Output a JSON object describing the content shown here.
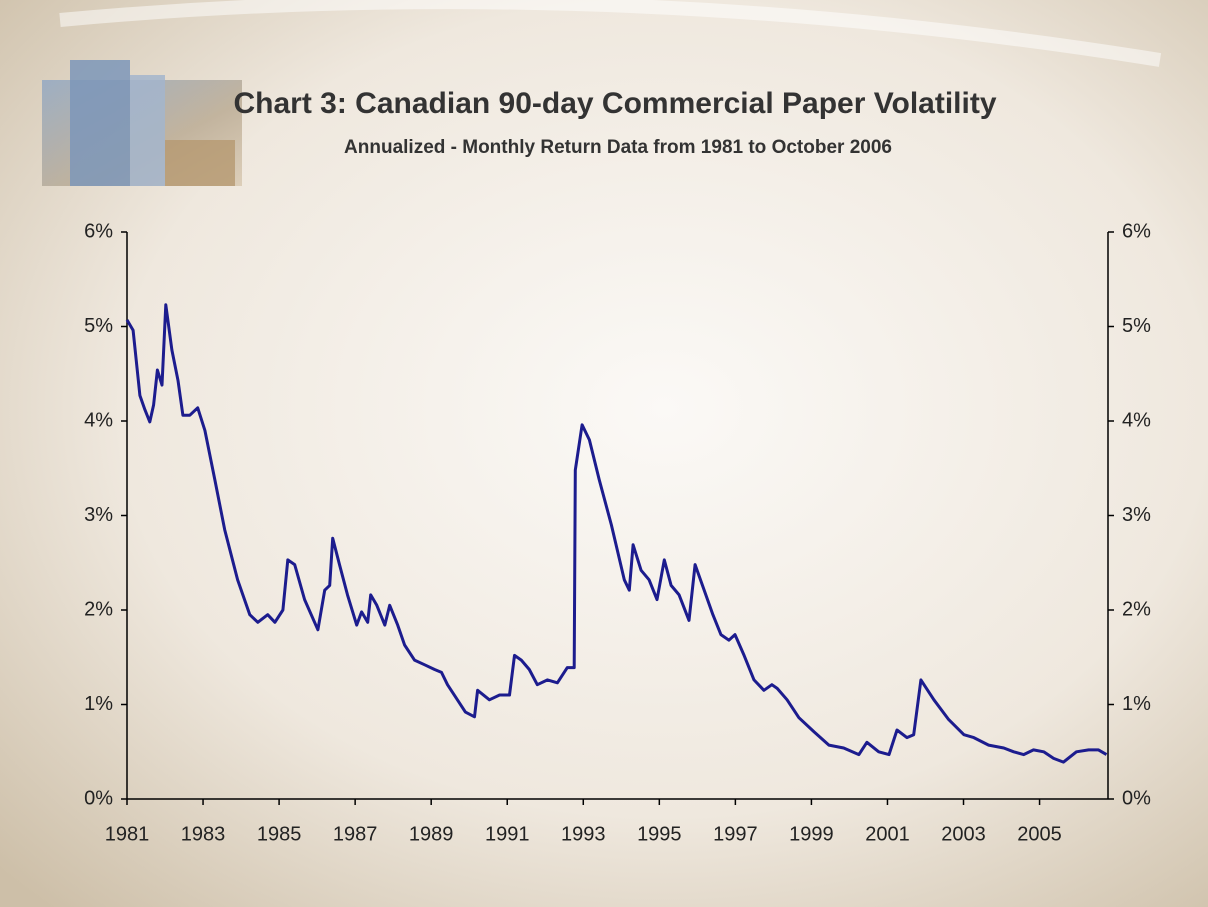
{
  "chart_data": {
    "type": "line",
    "title": "Chart 3: Canadian 90-day Commercial Paper Volatility",
    "subtitle": "Annualized - Monthly Return Data from 1981 to October 2006",
    "color": "#1c1c8e",
    "x": [
      1981.0,
      1981.16,
      1981.34,
      1981.47,
      1981.6,
      1981.7,
      1981.8,
      1981.92,
      1982.02,
      1982.18,
      1982.34,
      1982.47,
      1982.65,
      1982.86,
      1983.05,
      1983.31,
      1983.57,
      1983.91,
      1984.23,
      1984.44,
      1984.7,
      1984.89,
      1985.1,
      1985.23,
      1985.41,
      1985.67,
      1986.02,
      1986.2,
      1986.33,
      1986.41,
      1986.59,
      1986.8,
      1987.04,
      1987.17,
      1987.33,
      1987.41,
      1987.57,
      1987.78,
      1987.91,
      1988.12,
      1988.3,
      1988.56,
      1988.83,
      1989.09,
      1989.27,
      1989.43,
      1989.69,
      1989.9,
      1990.14,
      1990.22,
      1990.53,
      1990.8,
      1991.06,
      1991.19,
      1991.37,
      1991.58,
      1991.79,
      1992.06,
      1992.32,
      1992.58,
      1992.76,
      1992.79,
      1992.97,
      1993.16,
      1993.42,
      1993.74,
      1994.08,
      1994.21,
      1994.31,
      1994.52,
      1994.73,
      1994.94,
      1995.13,
      1995.31,
      1995.52,
      1995.78,
      1995.94,
      1996.18,
      1996.41,
      1996.62,
      1996.83,
      1996.99,
      1997.23,
      1997.49,
      1997.75,
      1997.96,
      1998.1,
      1998.36,
      1998.67,
      1999.07,
      1999.46,
      1999.85,
      2000.25,
      2000.46,
      2000.77,
      2001.04,
      2001.25,
      2001.51,
      2001.69,
      2001.88,
      2002.22,
      2002.61,
      2003.01,
      2003.27,
      2003.66,
      2004.06,
      2004.32,
      2004.58,
      2004.84,
      2005.11,
      2005.37,
      2005.63,
      2005.97,
      2006.29,
      2006.55,
      2006.76
    ],
    "values": [
      5.07,
      4.96,
      4.27,
      4.12,
      3.99,
      4.17,
      4.54,
      4.38,
      5.23,
      4.75,
      4.43,
      4.06,
      4.06,
      4.14,
      3.9,
      3.38,
      2.85,
      2.32,
      1.95,
      1.87,
      1.95,
      1.87,
      2.0,
      2.53,
      2.48,
      2.11,
      1.79,
      2.21,
      2.26,
      2.76,
      2.48,
      2.16,
      1.84,
      1.98,
      1.87,
      2.16,
      2.05,
      1.84,
      2.05,
      1.84,
      1.63,
      1.47,
      1.42,
      1.37,
      1.34,
      1.21,
      1.05,
      0.92,
      0.87,
      1.15,
      1.05,
      1.1,
      1.1,
      1.52,
      1.47,
      1.37,
      1.21,
      1.26,
      1.23,
      1.39,
      1.39,
      3.48,
      3.96,
      3.8,
      3.38,
      2.9,
      2.32,
      2.21,
      2.69,
      2.42,
      2.32,
      2.11,
      2.53,
      2.26,
      2.16,
      1.89,
      2.48,
      2.21,
      1.95,
      1.74,
      1.68,
      1.74,
      1.52,
      1.26,
      1.15,
      1.21,
      1.17,
      1.05,
      0.86,
      0.71,
      0.57,
      0.54,
      0.47,
      0.6,
      0.5,
      0.47,
      0.73,
      0.65,
      0.68,
      1.26,
      1.05,
      0.84,
      0.68,
      0.65,
      0.57,
      0.54,
      0.5,
      0.47,
      0.52,
      0.5,
      0.43,
      0.39,
      0.5,
      0.52,
      0.52,
      0.47
    ],
    "xlim": [
      1981,
      2006.8
    ],
    "xticks": [
      1981,
      1983,
      1985,
      1987,
      1989,
      1991,
      1993,
      1995,
      1997,
      1999,
      2001,
      2003,
      2005
    ],
    "ylim": [
      0,
      6
    ],
    "yticks": [
      {
        "value": 0,
        "label": "0%"
      },
      {
        "value": 1,
        "label": "1%"
      },
      {
        "value": 2,
        "label": "2%"
      },
      {
        "value": 3,
        "label": "3%"
      },
      {
        "value": 4,
        "label": "4%"
      },
      {
        "value": 5,
        "label": "5%"
      },
      {
        "value": 6,
        "label": "6%"
      }
    ],
    "y2lim": [
      0,
      6
    ],
    "y2ticks": [
      {
        "value": 0,
        "label": "0%"
      },
      {
        "value": 1,
        "label": "1%"
      },
      {
        "value": 2,
        "label": "2%"
      },
      {
        "value": 3,
        "label": "3%"
      },
      {
        "value": 4,
        "label": "4%"
      },
      {
        "value": 5,
        "label": "5%"
      },
      {
        "value": 6,
        "label": "6%"
      }
    ]
  }
}
